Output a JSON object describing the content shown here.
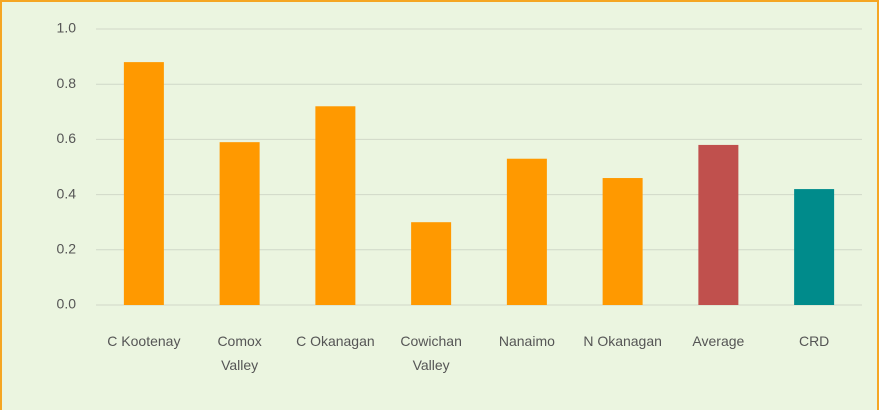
{
  "chart_data": {
    "type": "bar",
    "categories": [
      "C Kootenay",
      "Comox Valley",
      "C Okanagan",
      "Cowichan Valley",
      "Nanaimo",
      "N Okanagan",
      "Average",
      "CRD"
    ],
    "values": [
      0.88,
      0.59,
      0.72,
      0.3,
      0.53,
      0.46,
      0.58,
      0.42
    ],
    "colors": [
      "#ff9900",
      "#ff9900",
      "#ff9900",
      "#ff9900",
      "#ff9900",
      "#ff9900",
      "#c0504d",
      "#008b8b"
    ],
    "ylim": [
      0,
      1
    ],
    "yticks": [
      {
        "value": 0,
        "label": "0.0"
      },
      0.2,
      0.4,
      0.6,
      0.8,
      {
        "value": 1,
        "label": "1.0"
      }
    ],
    "grid": true
  }
}
